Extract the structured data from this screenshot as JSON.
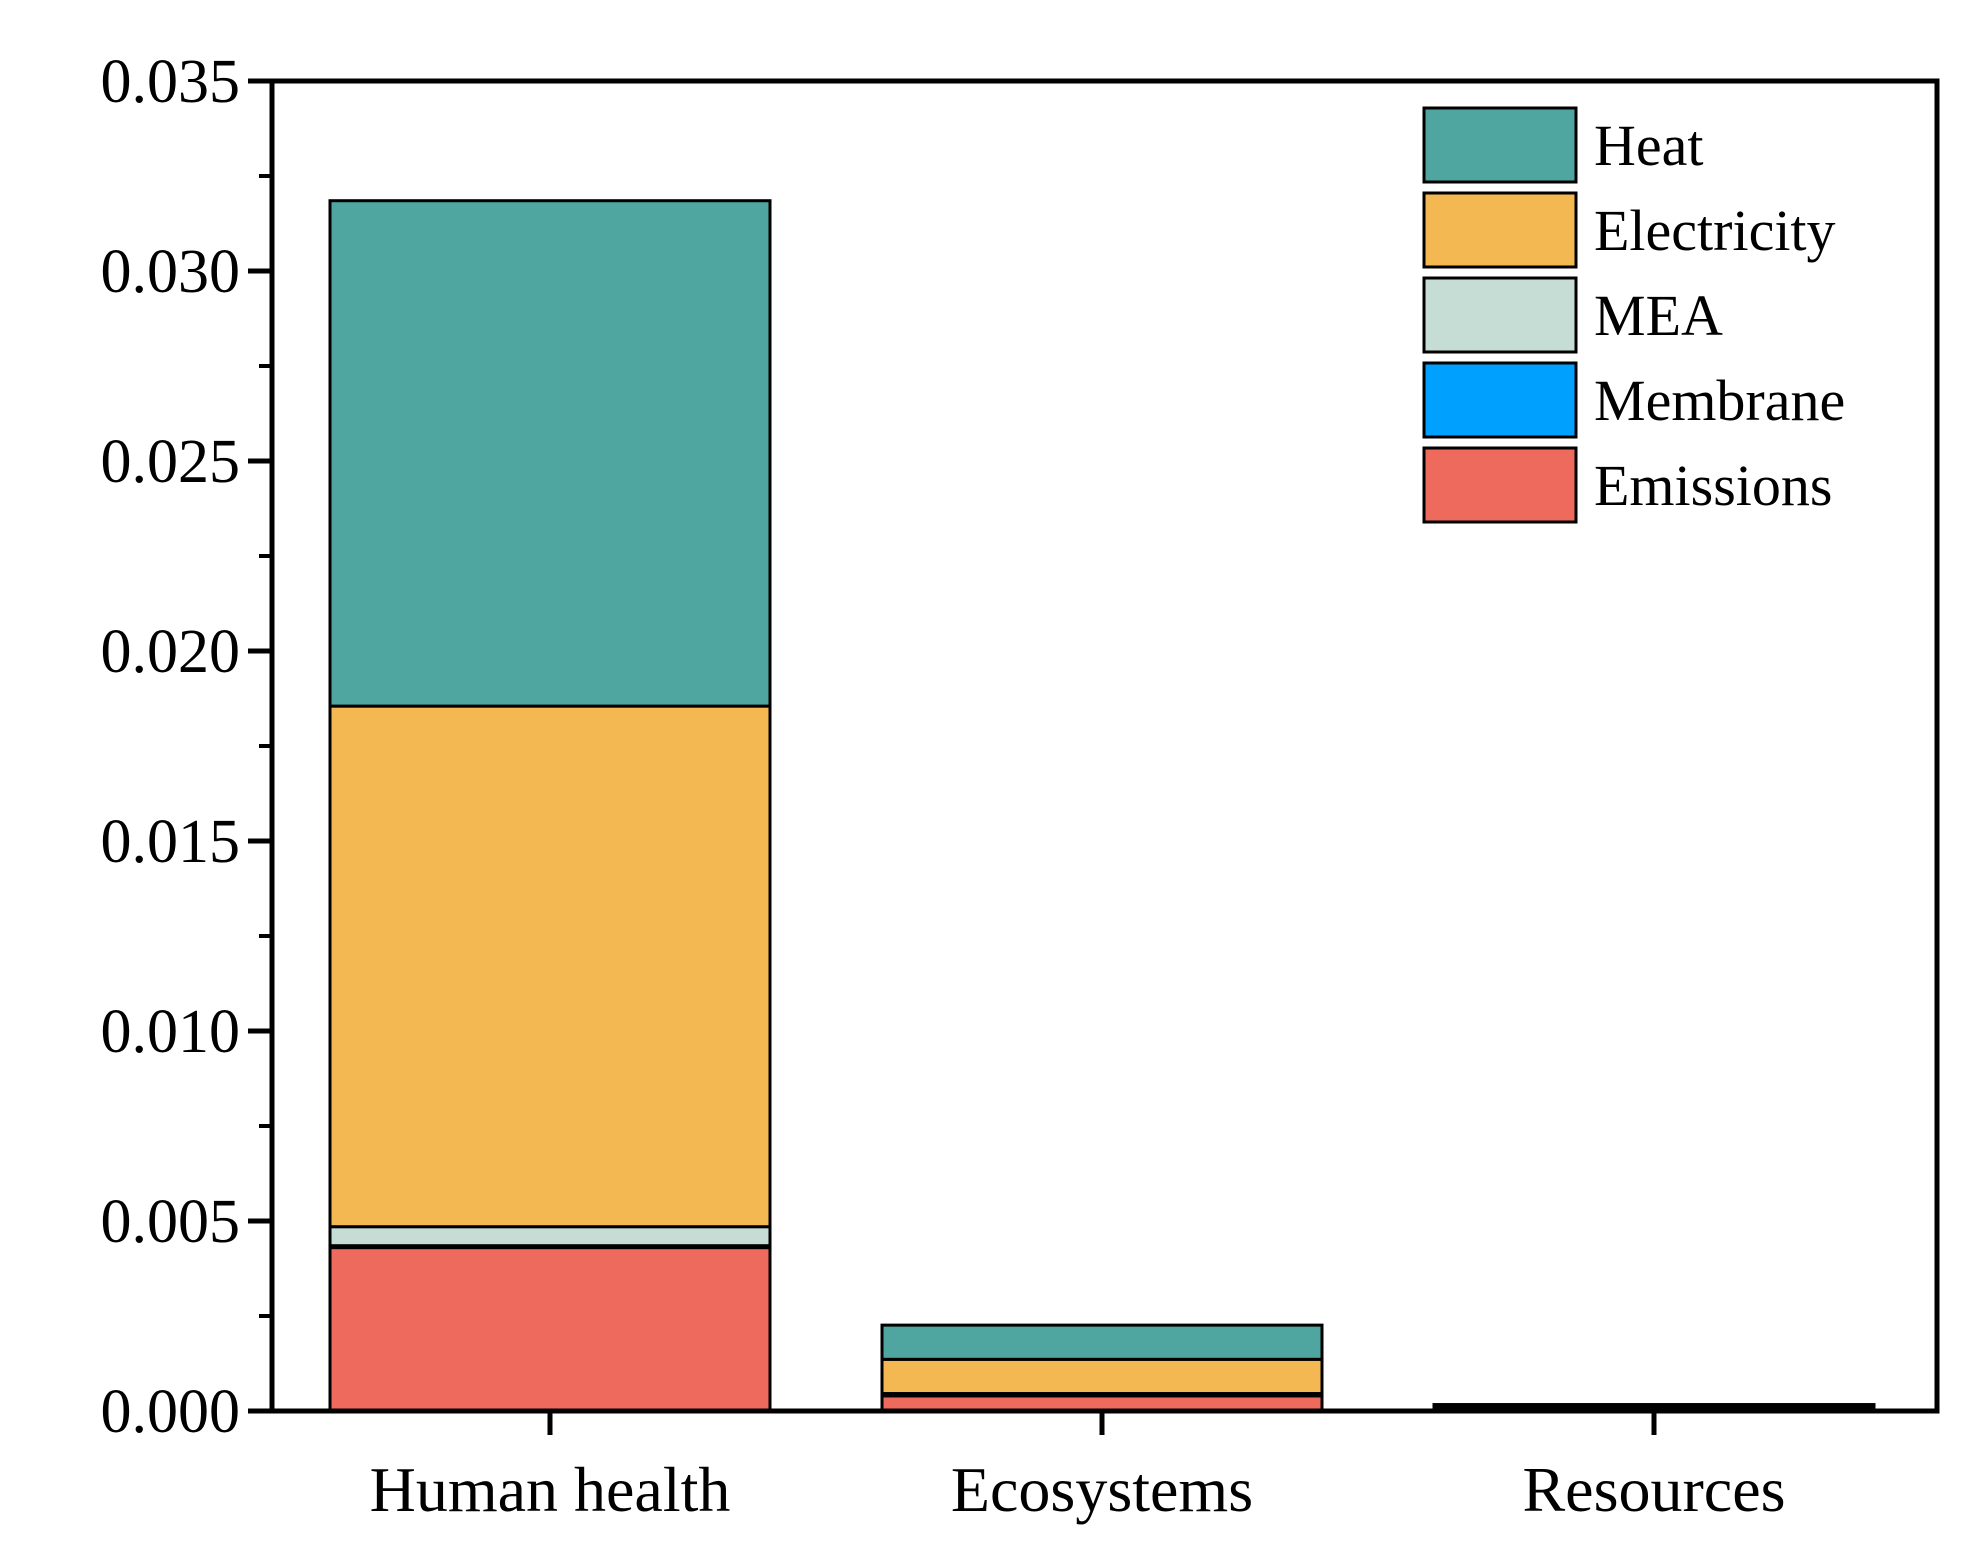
{
  "chart_data": {
    "type": "bar",
    "stacked": true,
    "title": "",
    "xlabel": "",
    "ylabel": "",
    "categories": [
      "Human health",
      "Ecosystems",
      "Resources"
    ],
    "ylim": [
      0,
      0.035
    ],
    "yticks": [
      0.0,
      0.005,
      0.01,
      0.015,
      0.02,
      0.025,
      0.03,
      0.035
    ],
    "ytick_labels": [
      "0.000",
      "0.005",
      "0.010",
      "0.015",
      "0.020",
      "0.025",
      "0.030",
      "0.035"
    ],
    "grid": false,
    "legend_position": "top-right",
    "series": [
      {
        "name": "Emissions",
        "color": "#EE6A5D",
        "values": [
          0.0043,
          0.0004,
          5e-05
        ]
      },
      {
        "name": "Membrane",
        "color": "#00A0FF",
        "values": [
          5e-05,
          1e-05,
          1e-05
        ]
      },
      {
        "name": "MEA",
        "color": "#C5DDD5",
        "values": [
          0.0005,
          5e-05,
          1e-05
        ]
      },
      {
        "name": "Electricity",
        "color": "#F4B853",
        "values": [
          0.0137,
          0.0009,
          5e-05
        ]
      },
      {
        "name": "Heat",
        "color": "#4FA6A0",
        "values": [
          0.0133,
          0.0009,
          5e-05
        ]
      }
    ],
    "legend_order": [
      "Heat",
      "Electricity",
      "MEA",
      "Membrane",
      "Emissions"
    ]
  }
}
